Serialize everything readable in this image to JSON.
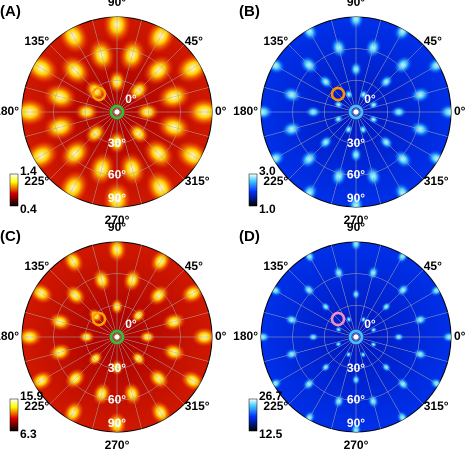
{
  "panels": [
    {
      "label": "(A)",
      "colorbar_max": "1.4",
      "colorbar_min": "0.4",
      "colormap": "hot"
    },
    {
      "label": "(B)",
      "colorbar_max": "3.0",
      "colorbar_min": "1.0",
      "colormap": "blue"
    },
    {
      "label": "(C)",
      "colorbar_max": "15.9",
      "colorbar_min": "6.3",
      "colormap": "hot"
    },
    {
      "label": "(D)",
      "colorbar_max": "26.7",
      "colorbar_min": "12.5",
      "colormap": "blue"
    }
  ],
  "azimuth_labels": [
    "90°",
    "45°",
    "0°",
    "315°",
    "270°",
    "225°",
    "180°",
    "135°"
  ],
  "polar_labels": [
    "0°",
    "30°",
    "60°",
    "90°"
  ]
}
